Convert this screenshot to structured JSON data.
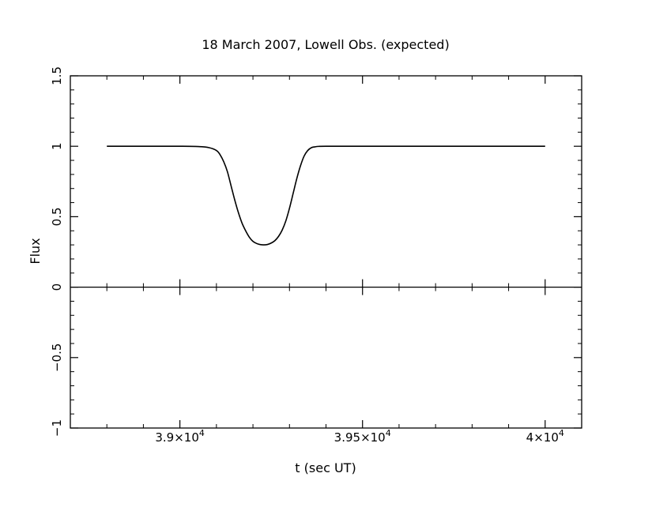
{
  "chart_data": {
    "type": "line",
    "title": "18 March 2007, Lowell Obs. (expected)",
    "xlabel": "t (sec UT)",
    "ylabel": "Flux",
    "xlim": [
      38700,
      40100
    ],
    "ylim": [
      -1,
      1.5
    ],
    "x_ticks": [
      {
        "value": 39000,
        "mantissa": "3.9",
        "exponent": "4"
      },
      {
        "value": 39500,
        "mantissa": "3.95",
        "exponent": "4"
      },
      {
        "value": 40000,
        "mantissa": "4",
        "exponent": "4"
      }
    ],
    "y_ticks": [
      {
        "value": -1,
        "label": "−1"
      },
      {
        "value": -0.5,
        "label": "−0.5"
      },
      {
        "value": 0,
        "label": "0"
      },
      {
        "value": 0.5,
        "label": "0.5"
      },
      {
        "value": 1,
        "label": "1"
      },
      {
        "value": 1.5,
        "label": "1.5"
      }
    ],
    "zero_line": true,
    "series": [
      {
        "x": [
          38800,
          38900,
          39000,
          39050,
          39080,
          39100,
          39110,
          39120,
          39130,
          39140,
          39150,
          39160,
          39170,
          39180,
          39190,
          39200,
          39210,
          39220,
          39230,
          39240,
          39250,
          39260,
          39270,
          39280,
          39290,
          39300,
          39310,
          39320,
          39330,
          39340,
          39350,
          39360,
          39370,
          39380,
          39400,
          39500,
          39600,
          39700,
          39800,
          39900,
          40000
        ],
        "y": [
          1.0,
          1.0,
          1.0,
          0.998,
          0.99,
          0.97,
          0.94,
          0.89,
          0.82,
          0.72,
          0.62,
          0.53,
          0.455,
          0.4,
          0.355,
          0.325,
          0.31,
          0.302,
          0.3,
          0.303,
          0.313,
          0.33,
          0.36,
          0.405,
          0.47,
          0.56,
          0.665,
          0.77,
          0.86,
          0.93,
          0.97,
          0.99,
          0.996,
          0.999,
          1.0,
          1.0,
          1.0,
          1.0,
          1.0,
          1.0,
          1.0
        ]
      }
    ]
  }
}
